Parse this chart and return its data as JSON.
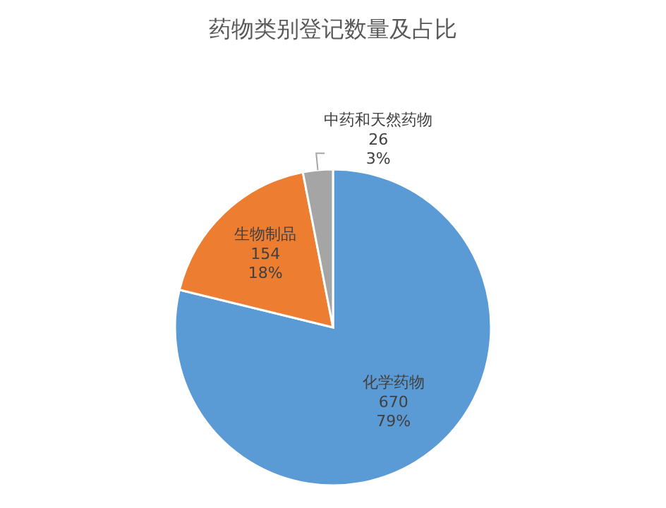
{
  "chart_data": {
    "type": "pie",
    "title": "药物类别登记数量及占比",
    "categories": [
      "化学药物",
      "生物制品",
      "中药和天然药物"
    ],
    "values": [
      670,
      154,
      26
    ],
    "value_labels": [
      "670\n79%",
      "154\n18%",
      "26\n3%"
    ],
    "colors": [
      "#5b9bd5",
      "#ed7d31",
      "#a5a5a5"
    ]
  }
}
